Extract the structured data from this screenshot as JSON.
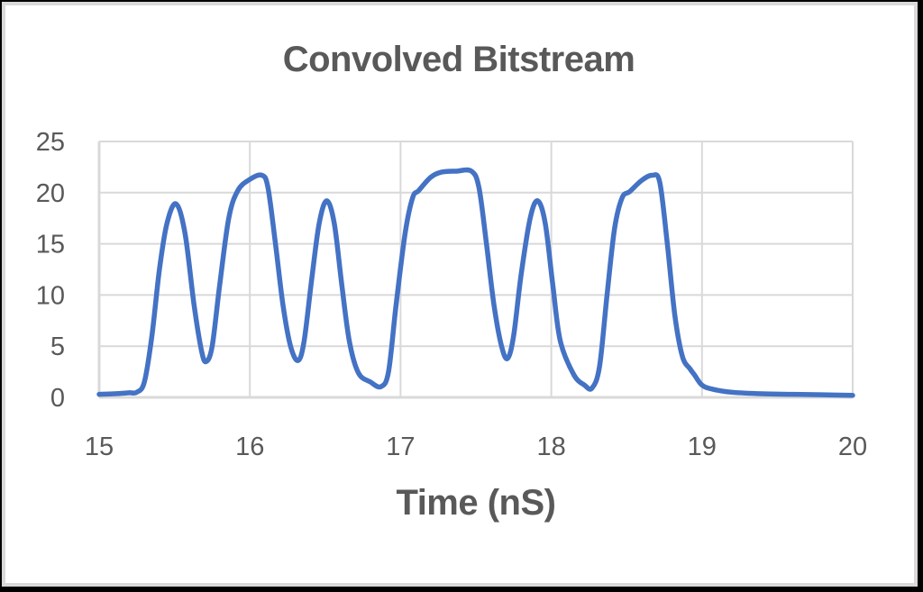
{
  "chart_data": {
    "type": "line",
    "title": "Convolved Bitstream",
    "xlabel": "Time (nS)",
    "ylabel": "",
    "xlim": [
      15,
      20
    ],
    "ylim": [
      0,
      25
    ],
    "x_ticks": [
      "15",
      "16",
      "17",
      "18",
      "19",
      "20"
    ],
    "y_ticks": [
      "0",
      "5",
      "10",
      "15",
      "20",
      "25"
    ],
    "grid": true,
    "legend": null,
    "series": [
      {
        "name": "Convolved Bitstream",
        "color": "#4472C4",
        "x": [
          15.0,
          15.1,
          15.2,
          15.25,
          15.3,
          15.35,
          15.4,
          15.45,
          15.51,
          15.57,
          15.63,
          15.68,
          15.71,
          15.75,
          15.8,
          15.86,
          15.92,
          16.0,
          16.08,
          16.12,
          16.17,
          16.22,
          16.27,
          16.32,
          16.36,
          16.41,
          16.46,
          16.51,
          16.56,
          16.61,
          16.66,
          16.72,
          16.8,
          16.87,
          16.92,
          16.97,
          17.03,
          17.08,
          17.12,
          17.2,
          17.27,
          17.37,
          17.47,
          17.52,
          17.57,
          17.62,
          17.67,
          17.71,
          17.75,
          17.8,
          17.86,
          17.91,
          17.96,
          18.01,
          18.06,
          18.15,
          18.22,
          18.27,
          18.32,
          18.37,
          18.42,
          18.47,
          18.52,
          18.6,
          18.67,
          18.72,
          18.77,
          18.82,
          18.87,
          18.92,
          18.95,
          19.0,
          19.07,
          19.2,
          19.4,
          19.6,
          19.8,
          20.0
        ],
        "y": [
          0.3,
          0.35,
          0.45,
          0.5,
          1.5,
          6.0,
          12.5,
          17.0,
          18.9,
          16.0,
          9.0,
          4.5,
          3.5,
          5.0,
          11.0,
          17.5,
          20.2,
          21.3,
          21.7,
          20.5,
          15.0,
          9.0,
          5.0,
          3.6,
          5.5,
          11.5,
          17.0,
          19.2,
          17.0,
          11.0,
          5.5,
          2.4,
          1.5,
          1.05,
          2.5,
          9.0,
          16.0,
          19.5,
          20.2,
          21.5,
          22.0,
          22.1,
          22.1,
          20.5,
          15.0,
          9.0,
          5.0,
          3.8,
          6.0,
          12.0,
          17.5,
          19.2,
          17.0,
          11.0,
          5.5,
          2.2,
          1.2,
          0.9,
          3.0,
          10.0,
          16.5,
          19.5,
          20.1,
          21.2,
          21.7,
          21.0,
          15.0,
          8.0,
          4.0,
          2.8,
          2.2,
          1.2,
          0.8,
          0.5,
          0.35,
          0.3,
          0.25,
          0.2
        ]
      }
    ]
  },
  "colors": {
    "line": "#4472C4",
    "grid": "#d9d9d9",
    "text": "#595959",
    "background": "#ffffff",
    "frame": "#000000"
  }
}
